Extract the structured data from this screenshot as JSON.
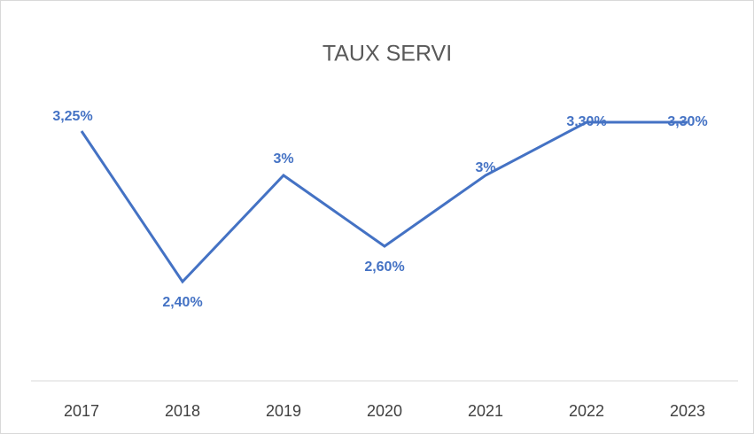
{
  "chart_data": {
    "type": "line",
    "title": "TAUX SERVI",
    "categories": [
      "2017",
      "2018",
      "2019",
      "2020",
      "2021",
      "2022",
      "2023"
    ],
    "series": [
      {
        "color": "#4472c4",
        "values": [
          3.25,
          2.4,
          3,
          2.6,
          3,
          3.3,
          3.3
        ],
        "value_labels": [
          "3,25%",
          "2,40%",
          "3%",
          "2,60%",
          "3%",
          "3,30%",
          "3,30%"
        ]
      }
    ]
  }
}
